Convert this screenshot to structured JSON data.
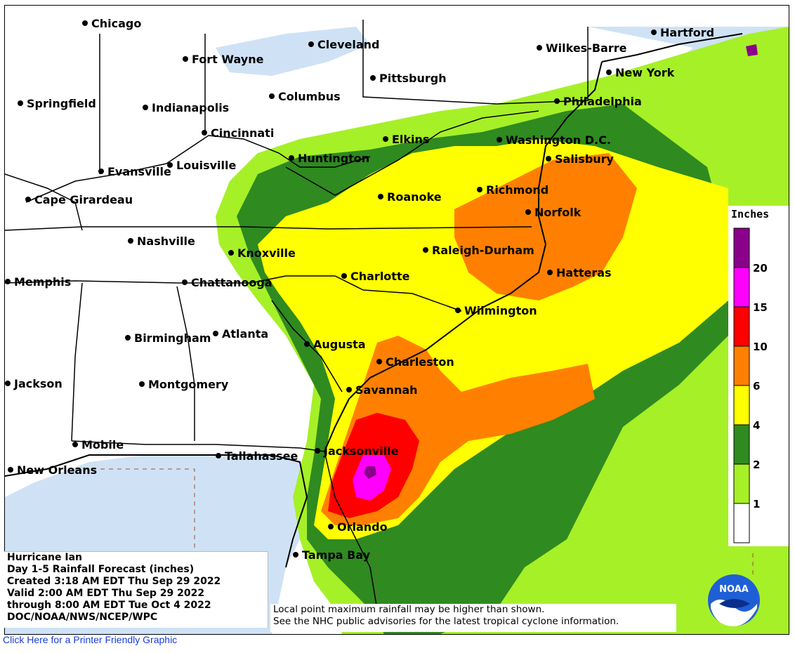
{
  "cities": [
    {
      "name": "Chicago",
      "icon": "city-dot"
    },
    {
      "name": "Fort Wayne",
      "icon": "city-dot"
    },
    {
      "name": "Cleveland",
      "icon": "city-dot"
    },
    {
      "name": "Wilkes-Barre",
      "icon": "city-dot"
    },
    {
      "name": "Hartford",
      "icon": "city-dot"
    },
    {
      "name": "New York",
      "icon": "city-dot"
    },
    {
      "name": "Pittsburgh",
      "icon": "city-dot"
    },
    {
      "name": "Columbus",
      "icon": "city-dot"
    },
    {
      "name": "Springfield",
      "icon": "city-dot"
    },
    {
      "name": "Indianapolis",
      "icon": "city-dot"
    },
    {
      "name": "Philadelphia",
      "icon": "city-dot"
    },
    {
      "name": "Cincinnati",
      "icon": "city-dot"
    },
    {
      "name": "Elkins",
      "icon": "city-dot"
    },
    {
      "name": "Washington D.C.",
      "icon": "city-dot"
    },
    {
      "name": "Huntington",
      "icon": "city-dot"
    },
    {
      "name": "Salisbury",
      "icon": "city-dot"
    },
    {
      "name": "Evansville",
      "icon": "city-dot"
    },
    {
      "name": "Louisville",
      "icon": "city-dot"
    },
    {
      "name": "Richmond",
      "icon": "city-dot"
    },
    {
      "name": "Roanoke",
      "icon": "city-dot"
    },
    {
      "name": "Cape Girardeau",
      "icon": "city-dot"
    },
    {
      "name": "Norfolk",
      "icon": "city-dot"
    },
    {
      "name": "Nashville",
      "icon": "city-dot"
    },
    {
      "name": "Knoxville",
      "icon": "city-dot"
    },
    {
      "name": "Raleigh-Durham",
      "icon": "city-dot"
    },
    {
      "name": "Charlotte",
      "icon": "city-dot"
    },
    {
      "name": "Hatteras",
      "icon": "city-dot"
    },
    {
      "name": "Memphis",
      "icon": "city-dot"
    },
    {
      "name": "Chattanooga",
      "icon": "city-dot"
    },
    {
      "name": "Wilmington",
      "icon": "city-dot"
    },
    {
      "name": "Birmingham",
      "icon": "city-dot"
    },
    {
      "name": "Atlanta",
      "icon": "city-dot"
    },
    {
      "name": "Augusta",
      "icon": "city-dot"
    },
    {
      "name": "Charleston",
      "icon": "city-dot"
    },
    {
      "name": "Jackson",
      "icon": "city-dot"
    },
    {
      "name": "Montgomery",
      "icon": "city-dot"
    },
    {
      "name": "Savannah",
      "icon": "city-dot"
    },
    {
      "name": "Mobile",
      "icon": "city-dot"
    },
    {
      "name": "Jacksonville",
      "icon": "city-dot"
    },
    {
      "name": "Tallahassee",
      "icon": "city-dot"
    },
    {
      "name": "New Orleans",
      "icon": "city-dot"
    },
    {
      "name": "Orlando",
      "icon": "city-dot"
    },
    {
      "name": "Tampa Bay",
      "icon": "city-dot"
    }
  ],
  "legend": {
    "title": "Inches",
    "ticks": [
      "1",
      "2",
      "4",
      "6",
      "10",
      "15",
      "20"
    ],
    "colors": [
      "#ffffff",
      "#a6f028",
      "#2f8a20",
      "#ffff00",
      "#ff8000",
      "#ff0000",
      "#ff00ff",
      "#8b008b"
    ]
  },
  "info": {
    "line1": "Hurricane Ian",
    "line2": "Day 1-5 Rainfall Forecast (inches)",
    "line3": "Created 3:18 AM EDT Thu Sep 29 2022",
    "line4": "Valid 2:00 AM EDT Thu Sep 29 2022",
    "line5": "through 8:00 AM EDT Tue Oct 4 2022",
    "line6": "DOC/NOAA/NWS/NCEP/WPC"
  },
  "note": {
    "line1": "Local point maximum rainfall may be higher than shown.",
    "line2": "See the NHC public advisories for the latest tropical cyclone information."
  },
  "logo": {
    "text": "NOAA",
    "icon": "noaa-logo-icon"
  },
  "link": {
    "label": "Click Here for a Printer Friendly Graphic"
  },
  "colors": {
    "water": "#cfe2f5",
    "land": "#ffffff",
    "link": "#1a3de0"
  }
}
